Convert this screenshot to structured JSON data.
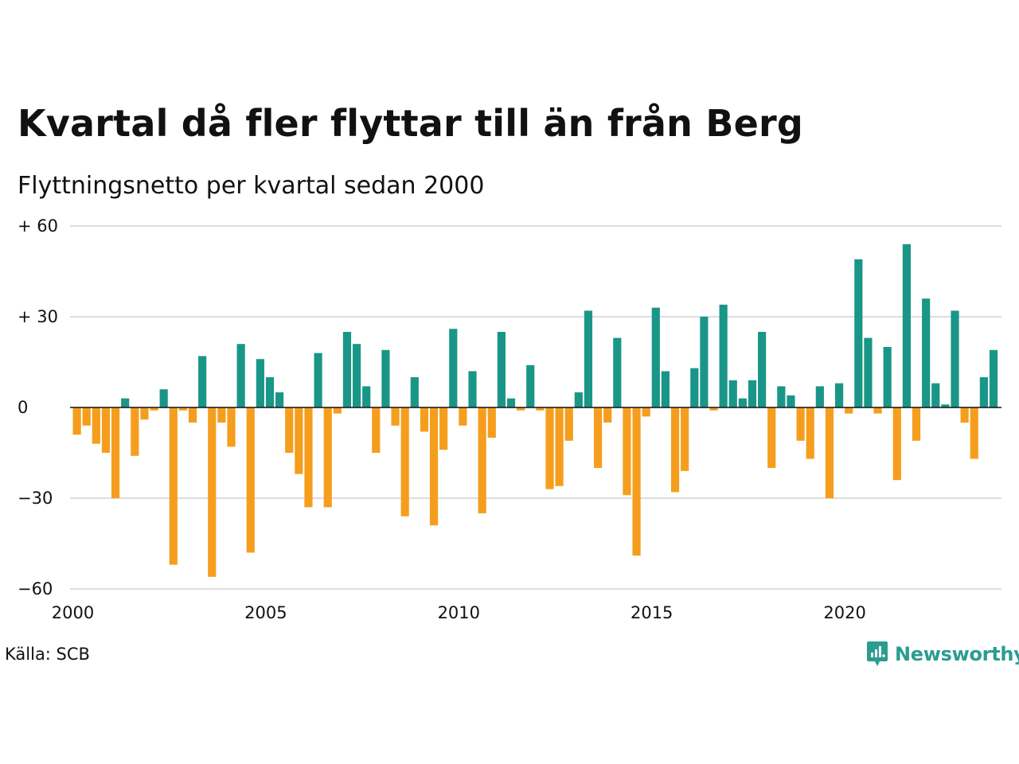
{
  "title": "Kvartal då fler flyttar till än från Berg",
  "subtitle": "Flyttningsnetto per kvartal sedan 2000",
  "source": "Källa: SCB",
  "brand": {
    "name": "Newsworthy",
    "icon": "newsworthy-logo-icon",
    "color": "#2a9d8f"
  },
  "colors": {
    "positive": "#1a9688",
    "negative": "#f59e1e",
    "grid": "#dddddd",
    "zero_line": "#111111"
  },
  "chart_data": {
    "type": "bar",
    "x_start_year": 2000,
    "x_tick_labels": [
      "2000",
      "2005",
      "2010",
      "2015",
      "2020"
    ],
    "y_tick_labels": [
      "+ 60",
      "+ 30",
      "0",
      "−30",
      "−60"
    ],
    "ylim": [
      -60,
      60
    ],
    "y_ticks": [
      60,
      30,
      0,
      -30,
      -60
    ],
    "grid": true,
    "values": [
      -9,
      -6,
      -12,
      -15,
      -30,
      3,
      -16,
      -4,
      -1,
      6,
      -52,
      -1,
      -5,
      17,
      -56,
      -5,
      -13,
      21,
      -48,
      16,
      10,
      5,
      -15,
      -22,
      -33,
      18,
      -33,
      -2,
      25,
      21,
      7,
      -15,
      19,
      -6,
      -36,
      10,
      -8,
      -39,
      -14,
      26,
      -6,
      12,
      -35,
      -10,
      25,
      3,
      -1,
      14,
      -1,
      -27,
      -26,
      -11,
      5,
      32,
      -20,
      -5,
      23,
      -29,
      -49,
      -3,
      33,
      12,
      -28,
      -21,
      13,
      30,
      -1,
      34,
      9,
      3,
      9,
      25,
      -20,
      7,
      4,
      -11,
      -17,
      7,
      -30,
      8,
      -2,
      49,
      23,
      -2,
      20,
      -24,
      54,
      -11,
      36,
      8,
      1,
      32,
      -5,
      -17,
      10,
      19
    ]
  }
}
